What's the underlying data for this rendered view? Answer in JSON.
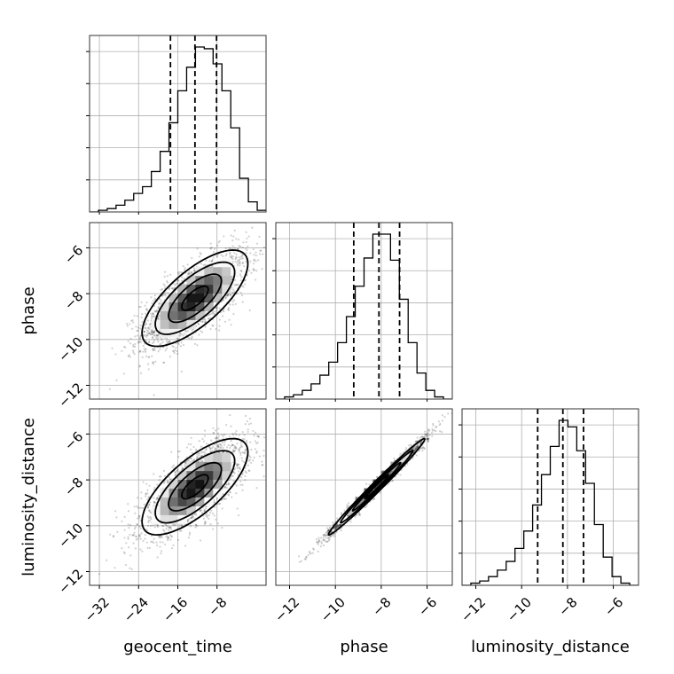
{
  "chart_data": {
    "type": "corner",
    "parameters": [
      "geocent_time",
      "phase",
      "luminosity_distance"
    ],
    "axis_labels": {
      "geocent_time": "geocent_time",
      "phase": "phase",
      "luminosity_distance": "luminosity_distance"
    },
    "ranges": {
      "geocent_time": [
        -34,
        2
      ],
      "phase": [
        -12.6,
        -4.9
      ],
      "luminosity_distance": [
        -12.6,
        -4.9
      ]
    },
    "ticks": {
      "geocent_time": [
        -32,
        -24,
        -16,
        -8
      ],
      "phase": [
        -12,
        -10,
        -8,
        -6
      ],
      "luminosity_distance": [
        -12,
        -10,
        -8,
        -6
      ]
    },
    "tick_labels": {
      "geocent_time": [
        "−32",
        "−24",
        "−16",
        "−8"
      ],
      "phase": [
        "−12",
        "−10",
        "−8",
        "−6"
      ],
      "luminosity_distance": [
        "−12",
        "−10",
        "−8",
        "−6"
      ]
    },
    "grid": true,
    "quantiles": {
      "geocent_time": [
        -17.5,
        -12.5,
        -8.1
      ],
      "phase": [
        -9.2,
        -8.1,
        -7.2
      ],
      "luminosity_distance": [
        -9.3,
        -8.2,
        -7.3
      ]
    },
    "histograms": {
      "geocent_time": {
        "edges_start": -34,
        "bin_width": 1.8,
        "counts": [
          0,
          1,
          2,
          4,
          7,
          11,
          15,
          24,
          36,
          53,
          72,
          86,
          98,
          97,
          88,
          72,
          50,
          20,
          6,
          1
        ]
      },
      "phase": {
        "edges_start": -12.6,
        "bin_width": 0.385,
        "counts": [
          0,
          1,
          2,
          4,
          7,
          11,
          17,
          26,
          38,
          52,
          65,
          76,
          76,
          64,
          46,
          26,
          12,
          4,
          1,
          0
        ]
      },
      "luminosity_distance": {
        "edges_start": -12.6,
        "bin_width": 0.385,
        "counts": [
          0,
          1,
          2,
          4,
          7,
          11,
          17,
          25,
          37,
          51,
          64,
          76,
          73,
          62,
          47,
          28,
          13,
          4,
          1,
          0
        ]
      }
    },
    "joint": {
      "geocent_time|phase": {
        "mean": [
          -12.5,
          -8.2
        ],
        "sd": [
          5.4,
          1.05
        ],
        "rho": 0.72
      },
      "geocent_time|luminosity_distance": {
        "mean": [
          -12.5,
          -8.3
        ],
        "sd": [
          5.4,
          1.05
        ],
        "rho": 0.72
      },
      "phase|luminosity_distance": {
        "mean": [
          -8.2,
          -8.3
        ],
        "sd": [
          1.05,
          1.05
        ],
        "rho": 0.99
      }
    },
    "contour_levels": [
      "0.5",
      "1.0",
      "1.5",
      "2.0"
    ]
  }
}
